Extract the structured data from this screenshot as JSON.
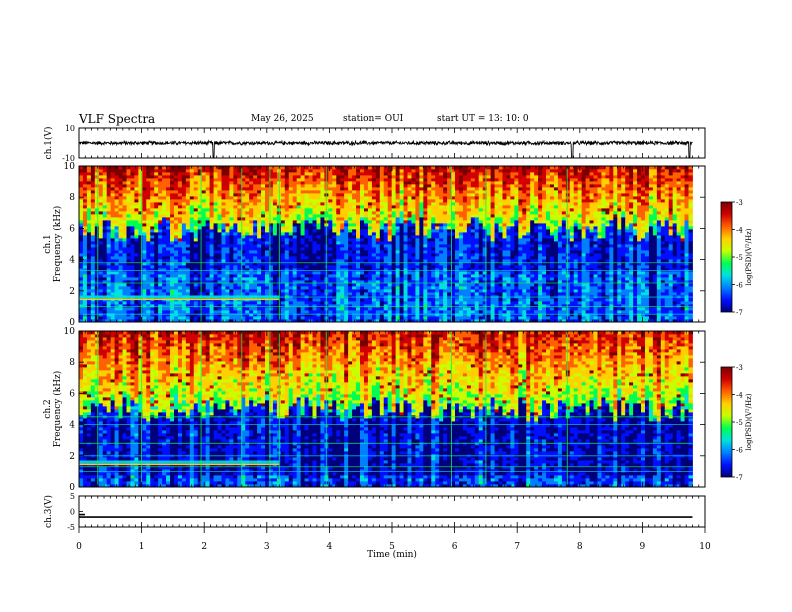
{
  "header": {
    "title": "VLF Spectra",
    "date": "May 26, 2025",
    "station": "station= OUI",
    "start": "start  UT  =   13: 10: 0"
  },
  "colors": {
    "colormap": [
      "#00007a",
      "#0010ff",
      "#0080ff",
      "#00e0e0",
      "#00ff50",
      "#c8ff00",
      "#ffd000",
      "#ff6000",
      "#d00000",
      "#7a0000"
    ],
    "axis": "#000000",
    "background": "#ffffff"
  },
  "chart_data": [
    {
      "type": "line",
      "ylabel": "ch.1(V)",
      "ylim": [
        -10,
        10
      ],
      "ytick_labels": [
        "10",
        "-10"
      ],
      "xlim": [
        0,
        10
      ],
      "baseline": 0,
      "noise_amplitude": 1.2,
      "spikes_at_minutes": [
        2.15,
        7.88,
        9.75
      ],
      "spike_min": -10
    },
    {
      "type": "heatmap",
      "channel_label": "ch.1",
      "ylabel": "Frequency (kHz)",
      "ylim": [
        0,
        10
      ],
      "ytick_labels": [
        "0",
        "2",
        "4",
        "6",
        "8",
        "10"
      ],
      "xlim": [
        0,
        9.8
      ],
      "colorbar": {
        "label": "log(PSD)(V²/Hz)",
        "ticks": [
          "-3",
          "-4",
          "-5",
          "-6",
          "-7"
        ],
        "range": [
          -7,
          -3
        ]
      },
      "features": {
        "dark_band_khz": [
          3.2,
          6.0
        ],
        "stable_tones_khz": [
          0.5,
          1.0,
          1.6,
          2.5,
          3.3,
          3.8
        ],
        "tone_end_minute": 3.2,
        "vertical_lines_minutes": [
          0.3,
          1.0,
          1.95,
          2.6,
          3.05,
          3.2,
          3.95,
          5.95,
          6.5,
          7.8
        ]
      }
    },
    {
      "type": "heatmap",
      "channel_label": "ch.2",
      "ylabel": "Frequency (kHz)",
      "ylim": [
        0,
        10
      ],
      "ytick_labels": [
        "0",
        "2",
        "4",
        "6",
        "8",
        "10"
      ],
      "xlim": [
        0,
        9.8
      ],
      "colorbar": {
        "label": "log(PSD)(V²/Hz)",
        "ticks": [
          "-3",
          "-4",
          "-5",
          "-6",
          "-7"
        ],
        "range": [
          -7,
          -3
        ]
      },
      "features": {
        "dark_band_khz": [
          0.8,
          5.0
        ],
        "stable_tones_khz": [
          1.0,
          1.3,
          2.0,
          2.8,
          4.0,
          4.5
        ],
        "tone_end_minute": 3.2,
        "vertical_lines_minutes": [
          0.3,
          1.0,
          1.95,
          2.6,
          3.05,
          3.2,
          3.95,
          5.95,
          6.5,
          7.8
        ]
      }
    },
    {
      "type": "line",
      "ylabel": "ch.3(V)",
      "ylim": [
        -5,
        5
      ],
      "ytick_labels": [
        "5",
        "0",
        "-5"
      ],
      "xlim": [
        0,
        10
      ],
      "baseline": -1.8,
      "xlabel": "Time (min)",
      "xtick_labels": [
        "0",
        "1",
        "2",
        "3",
        "4",
        "5",
        "6",
        "7",
        "8",
        "9",
        "10"
      ]
    }
  ]
}
